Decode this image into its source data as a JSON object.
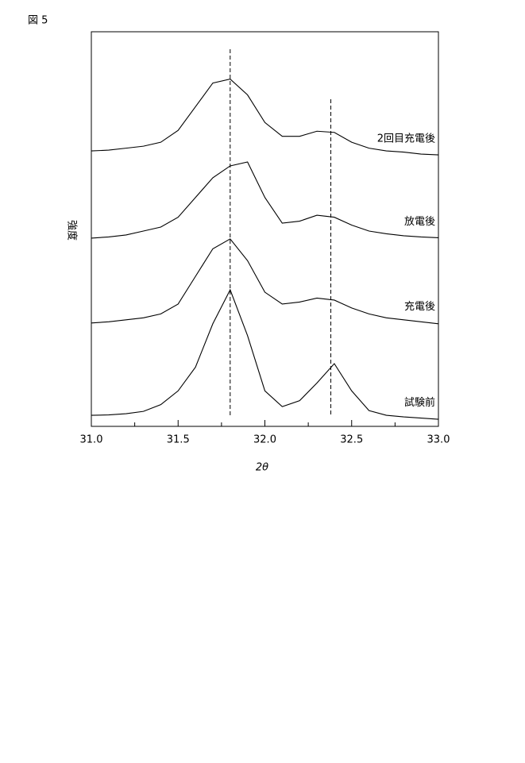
{
  "chart_data": {
    "type": "line",
    "figure_label": "図 5",
    "xlabel": "2θ",
    "ylabel": "強度",
    "x": [
      31.0,
      31.1,
      31.2,
      31.3,
      31.4,
      31.5,
      31.6,
      31.7,
      31.8,
      31.9,
      32.0,
      32.1,
      32.2,
      32.3,
      32.4,
      32.5,
      32.6,
      32.7,
      32.8,
      32.9,
      33.0
    ],
    "xlim": [
      31,
      33
    ],
    "xticks": [
      {
        "value": 31,
        "label": "31.0"
      },
      31.5,
      {
        "value": 32,
        "label": "32.0"
      },
      32.5,
      {
        "value": 33,
        "label": "33.0"
      }
    ],
    "xminorticks": [
      31.25,
      31.75,
      32.25,
      32.75
    ],
    "ylim": [
      0,
      100
    ],
    "reference_lines": [
      31.8,
      32.38
    ],
    "series": [
      {
        "name": "試験前",
        "color": "#000000",
        "values": [
          2.8,
          2.9,
          3.2,
          3.8,
          5.5,
          9,
          15,
          26,
          34.6,
          23,
          9,
          5,
          6.5,
          11,
          15.9,
          9,
          4,
          2.8,
          2.4,
          2.1,
          1.8
        ]
      },
      {
        "name": "充電後",
        "color": "#000000",
        "values": [
          26.2,
          26.5,
          27,
          27.5,
          28.5,
          31,
          38,
          45,
          47.5,
          42,
          34,
          31,
          31.5,
          32.5,
          32,
          30,
          28.5,
          27.5,
          27,
          26.5,
          26
        ]
      },
      {
        "name": "放電後",
        "color": "#000000",
        "values": [
          47.7,
          48,
          48.5,
          49.5,
          50.5,
          53,
          58,
          63,
          66,
          67,
          58,
          51.5,
          52,
          53.5,
          53,
          51,
          49.5,
          48.8,
          48.3,
          48,
          47.8
        ]
      },
      {
        "name": "2回目充電後",
        "color": "#000000",
        "values": [
          69.8,
          70,
          70.5,
          71,
          72,
          75,
          81,
          87,
          88,
          84,
          77,
          73.5,
          73.5,
          74.8,
          74.5,
          72,
          70.5,
          69.8,
          69.5,
          69,
          68.8
        ]
      }
    ]
  }
}
